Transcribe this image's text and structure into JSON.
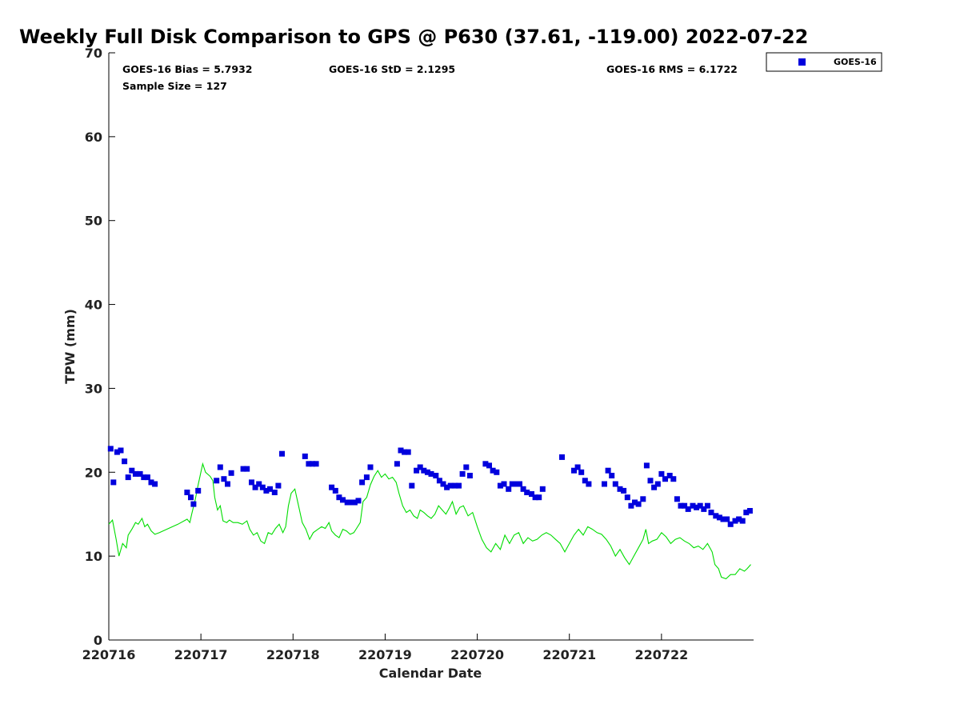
{
  "chart_data": {
    "type": "scatter+line",
    "title": "Weekly Full Disk Comparison to GPS @ P630 (37.61, -119.00) 2022-07-22",
    "xlabel": "Calendar Date",
    "ylabel": "TPW (mm)",
    "xlim": [
      0,
      7
    ],
    "ylim": [
      0,
      70
    ],
    "yticks": [
      0,
      10,
      20,
      30,
      40,
      50,
      60,
      70
    ],
    "xticks": [
      {
        "value": 0,
        "label": "220716"
      },
      {
        "value": 1,
        "label": "220717"
      },
      {
        "value": 2,
        "label": "220718"
      },
      {
        "value": 3,
        "label": "220719"
      },
      {
        "value": 4,
        "label": "220720"
      },
      {
        "value": 5,
        "label": "220721"
      },
      {
        "value": 6,
        "label": "220722"
      }
    ],
    "stats": {
      "bias": "GOES-16 Bias = 5.7932",
      "std": "GOES-16 StD = 2.1295",
      "rms": "GOES-16 RMS = 6.1722",
      "sample": "Sample Size = 127"
    },
    "legend": [
      {
        "name": "GOES-16",
        "color": "#0000dd",
        "marker": "square"
      }
    ],
    "series": [
      {
        "name": "GOES-16",
        "kind": "scatter",
        "color": "#0000dd",
        "points": [
          [
            0.02,
            22.8
          ],
          [
            0.05,
            18.8
          ],
          [
            0.09,
            22.4
          ],
          [
            0.13,
            22.6
          ],
          [
            0.17,
            21.3
          ],
          [
            0.21,
            19.4
          ],
          [
            0.25,
            20.2
          ],
          [
            0.29,
            19.8
          ],
          [
            0.34,
            19.8
          ],
          [
            0.38,
            19.4
          ],
          [
            0.42,
            19.4
          ],
          [
            0.46,
            18.8
          ],
          [
            0.5,
            18.6
          ],
          [
            0.85,
            17.6
          ],
          [
            0.89,
            17.0
          ],
          [
            0.92,
            16.2
          ],
          [
            0.97,
            17.8
          ],
          [
            1.17,
            19.0
          ],
          [
            1.21,
            20.6
          ],
          [
            1.25,
            19.2
          ],
          [
            1.29,
            18.6
          ],
          [
            1.33,
            19.9
          ],
          [
            1.46,
            20.4
          ],
          [
            1.5,
            20.4
          ],
          [
            1.55,
            18.8
          ],
          [
            1.59,
            18.2
          ],
          [
            1.63,
            18.6
          ],
          [
            1.67,
            18.2
          ],
          [
            1.71,
            17.8
          ],
          [
            1.75,
            18.0
          ],
          [
            1.8,
            17.6
          ],
          [
            1.84,
            18.4
          ],
          [
            1.88,
            22.2
          ],
          [
            2.13,
            21.9
          ],
          [
            2.17,
            21.0
          ],
          [
            2.21,
            21.0
          ],
          [
            2.25,
            21.0
          ],
          [
            2.42,
            18.2
          ],
          [
            2.46,
            17.8
          ],
          [
            2.5,
            17.0
          ],
          [
            2.54,
            16.7
          ],
          [
            2.59,
            16.4
          ],
          [
            2.63,
            16.4
          ],
          [
            2.67,
            16.4
          ],
          [
            2.71,
            16.6
          ],
          [
            2.75,
            18.8
          ],
          [
            2.8,
            19.4
          ],
          [
            2.84,
            20.6
          ],
          [
            3.13,
            21.0
          ],
          [
            3.17,
            22.6
          ],
          [
            3.21,
            22.4
          ],
          [
            3.25,
            22.4
          ],
          [
            3.29,
            18.4
          ],
          [
            3.34,
            20.2
          ],
          [
            3.38,
            20.6
          ],
          [
            3.42,
            20.2
          ],
          [
            3.46,
            20.0
          ],
          [
            3.5,
            19.8
          ],
          [
            3.55,
            19.6
          ],
          [
            3.59,
            19.0
          ],
          [
            3.63,
            18.6
          ],
          [
            3.67,
            18.2
          ],
          [
            3.71,
            18.4
          ],
          [
            3.76,
            18.4
          ],
          [
            3.8,
            18.4
          ],
          [
            3.84,
            19.8
          ],
          [
            3.88,
            20.6
          ],
          [
            3.92,
            19.6
          ],
          [
            4.09,
            21.0
          ],
          [
            4.13,
            20.8
          ],
          [
            4.17,
            20.2
          ],
          [
            4.21,
            20.0
          ],
          [
            4.25,
            18.4
          ],
          [
            4.29,
            18.6
          ],
          [
            4.34,
            18.0
          ],
          [
            4.38,
            18.6
          ],
          [
            4.42,
            18.6
          ],
          [
            4.46,
            18.6
          ],
          [
            4.5,
            18.0
          ],
          [
            4.54,
            17.6
          ],
          [
            4.59,
            17.4
          ],
          [
            4.63,
            17.0
          ],
          [
            4.67,
            17.0
          ],
          [
            4.71,
            18.0
          ],
          [
            4.92,
            21.8
          ],
          [
            5.05,
            20.2
          ],
          [
            5.09,
            20.6
          ],
          [
            5.13,
            20.0
          ],
          [
            5.17,
            19.0
          ],
          [
            5.21,
            18.6
          ],
          [
            5.38,
            18.6
          ],
          [
            5.42,
            20.2
          ],
          [
            5.46,
            19.6
          ],
          [
            5.5,
            18.6
          ],
          [
            5.55,
            18.0
          ],
          [
            5.59,
            17.8
          ],
          [
            5.63,
            17.0
          ],
          [
            5.67,
            16.0
          ],
          [
            5.71,
            16.4
          ],
          [
            5.75,
            16.2
          ],
          [
            5.8,
            16.8
          ],
          [
            5.84,
            20.8
          ],
          [
            5.88,
            19.0
          ],
          [
            5.92,
            18.2
          ],
          [
            5.96,
            18.6
          ],
          [
            6.0,
            19.8
          ],
          [
            6.04,
            19.2
          ],
          [
            6.09,
            19.6
          ],
          [
            6.13,
            19.2
          ],
          [
            6.17,
            16.8
          ],
          [
            6.21,
            16.0
          ],
          [
            6.25,
            16.0
          ],
          [
            6.29,
            15.6
          ],
          [
            6.34,
            16.0
          ],
          [
            6.38,
            15.8
          ],
          [
            6.42,
            16.0
          ],
          [
            6.46,
            15.6
          ],
          [
            6.5,
            16.0
          ],
          [
            6.54,
            15.2
          ],
          [
            6.59,
            14.8
          ],
          [
            6.63,
            14.6
          ],
          [
            6.67,
            14.4
          ],
          [
            6.71,
            14.4
          ],
          [
            6.75,
            13.8
          ],
          [
            6.8,
            14.2
          ],
          [
            6.84,
            14.4
          ],
          [
            6.88,
            14.2
          ],
          [
            6.92,
            15.2
          ],
          [
            6.96,
            15.4
          ]
        ]
      },
      {
        "name": "GPS",
        "kind": "line",
        "color": "#00dd00",
        "points": [
          [
            0,
            13.8
          ],
          [
            0.04,
            14.3
          ],
          [
            0.08,
            12.0
          ],
          [
            0.11,
            10.0
          ],
          [
            0.15,
            11.5
          ],
          [
            0.19,
            11.0
          ],
          [
            0.21,
            12.5
          ],
          [
            0.25,
            13.2
          ],
          [
            0.29,
            14.0
          ],
          [
            0.32,
            13.8
          ],
          [
            0.36,
            14.5
          ],
          [
            0.39,
            13.5
          ],
          [
            0.42,
            13.8
          ],
          [
            0.46,
            13.0
          ],
          [
            0.5,
            12.6
          ],
          [
            0.55,
            12.8
          ],
          [
            0.65,
            13.3
          ],
          [
            0.75,
            13.8
          ],
          [
            0.85,
            14.4
          ],
          [
            0.88,
            14.0
          ],
          [
            0.9,
            15.0
          ],
          [
            0.94,
            16.8
          ],
          [
            0.97,
            18.5
          ],
          [
            1.0,
            20.0
          ],
          [
            1.02,
            21.0
          ],
          [
            1.05,
            20.0
          ],
          [
            1.1,
            19.5
          ],
          [
            1.13,
            19.0
          ],
          [
            1.15,
            17.0
          ],
          [
            1.18,
            15.5
          ],
          [
            1.21,
            16.0
          ],
          [
            1.24,
            14.2
          ],
          [
            1.28,
            14.0
          ],
          [
            1.31,
            14.3
          ],
          [
            1.35,
            14.0
          ],
          [
            1.4,
            14.0
          ],
          [
            1.45,
            13.8
          ],
          [
            1.5,
            14.2
          ],
          [
            1.53,
            13.2
          ],
          [
            1.57,
            12.5
          ],
          [
            1.61,
            12.8
          ],
          [
            1.65,
            11.8
          ],
          [
            1.69,
            11.5
          ],
          [
            1.73,
            12.8
          ],
          [
            1.77,
            12.6
          ],
          [
            1.81,
            13.3
          ],
          [
            1.85,
            13.8
          ],
          [
            1.89,
            12.8
          ],
          [
            1.92,
            13.5
          ],
          [
            1.95,
            16.0
          ],
          [
            1.98,
            17.5
          ],
          [
            2.02,
            18.0
          ],
          [
            2.06,
            16.0
          ],
          [
            2.1,
            14.0
          ],
          [
            2.14,
            13.2
          ],
          [
            2.18,
            12.0
          ],
          [
            2.22,
            12.8
          ],
          [
            2.27,
            13.2
          ],
          [
            2.31,
            13.5
          ],
          [
            2.35,
            13.3
          ],
          [
            2.39,
            14.0
          ],
          [
            2.42,
            13.0
          ],
          [
            2.46,
            12.5
          ],
          [
            2.5,
            12.2
          ],
          [
            2.54,
            13.2
          ],
          [
            2.58,
            13.0
          ],
          [
            2.62,
            12.6
          ],
          [
            2.66,
            12.8
          ],
          [
            2.69,
            13.3
          ],
          [
            2.73,
            14.0
          ],
          [
            2.76,
            16.5
          ],
          [
            2.8,
            17.0
          ],
          [
            2.84,
            18.5
          ],
          [
            2.88,
            19.5
          ],
          [
            2.92,
            20.2
          ],
          [
            2.96,
            19.4
          ],
          [
            3.0,
            19.8
          ],
          [
            3.04,
            19.2
          ],
          [
            3.08,
            19.4
          ],
          [
            3.12,
            18.8
          ],
          [
            3.15,
            17.5
          ],
          [
            3.19,
            16.0
          ],
          [
            3.23,
            15.2
          ],
          [
            3.27,
            15.5
          ],
          [
            3.31,
            14.8
          ],
          [
            3.35,
            14.5
          ],
          [
            3.38,
            15.5
          ],
          [
            3.42,
            15.2
          ],
          [
            3.46,
            14.8
          ],
          [
            3.5,
            14.5
          ],
          [
            3.54,
            15.0
          ],
          [
            3.58,
            16.0
          ],
          [
            3.62,
            15.5
          ],
          [
            3.66,
            15.0
          ],
          [
            3.7,
            15.8
          ],
          [
            3.73,
            16.5
          ],
          [
            3.77,
            15.0
          ],
          [
            3.81,
            15.8
          ],
          [
            3.85,
            16.0
          ],
          [
            3.9,
            14.8
          ],
          [
            3.95,
            15.2
          ],
          [
            4.0,
            13.5
          ],
          [
            4.05,
            12.0
          ],
          [
            4.1,
            11.0
          ],
          [
            4.15,
            10.5
          ],
          [
            4.2,
            11.5
          ],
          [
            4.25,
            10.8
          ],
          [
            4.3,
            12.5
          ],
          [
            4.35,
            11.5
          ],
          [
            4.4,
            12.5
          ],
          [
            4.45,
            12.8
          ],
          [
            4.5,
            11.5
          ],
          [
            4.55,
            12.2
          ],
          [
            4.6,
            11.8
          ],
          [
            4.65,
            12.0
          ],
          [
            4.7,
            12.5
          ],
          [
            4.75,
            12.8
          ],
          [
            4.8,
            12.5
          ],
          [
            4.85,
            12.0
          ],
          [
            4.9,
            11.5
          ],
          [
            4.95,
            10.5
          ],
          [
            5.0,
            11.5
          ],
          [
            5.05,
            12.5
          ],
          [
            5.1,
            13.2
          ],
          [
            5.15,
            12.5
          ],
          [
            5.2,
            13.5
          ],
          [
            5.25,
            13.2
          ],
          [
            5.3,
            12.8
          ],
          [
            5.35,
            12.6
          ],
          [
            5.4,
            12.0
          ],
          [
            5.45,
            11.2
          ],
          [
            5.5,
            10.0
          ],
          [
            5.55,
            10.8
          ],
          [
            5.6,
            9.8
          ],
          [
            5.65,
            9.0
          ],
          [
            5.7,
            10.0
          ],
          [
            5.75,
            11.0
          ],
          [
            5.8,
            12.0
          ],
          [
            5.83,
            13.2
          ],
          [
            5.86,
            11.5
          ],
          [
            5.9,
            11.8
          ],
          [
            5.95,
            12.0
          ],
          [
            6.0,
            12.8
          ],
          [
            6.05,
            12.3
          ],
          [
            6.1,
            11.5
          ],
          [
            6.15,
            12.0
          ],
          [
            6.2,
            12.2
          ],
          [
            6.25,
            11.8
          ],
          [
            6.3,
            11.5
          ],
          [
            6.35,
            11.0
          ],
          [
            6.4,
            11.2
          ],
          [
            6.45,
            10.8
          ],
          [
            6.5,
            11.5
          ],
          [
            6.55,
            10.5
          ],
          [
            6.58,
            9.0
          ],
          [
            6.62,
            8.5
          ],
          [
            6.65,
            7.5
          ],
          [
            6.7,
            7.3
          ],
          [
            6.75,
            7.8
          ],
          [
            6.8,
            7.8
          ],
          [
            6.85,
            8.5
          ],
          [
            6.9,
            8.2
          ],
          [
            6.93,
            8.5
          ],
          [
            6.97,
            9.0
          ]
        ]
      }
    ]
  }
}
